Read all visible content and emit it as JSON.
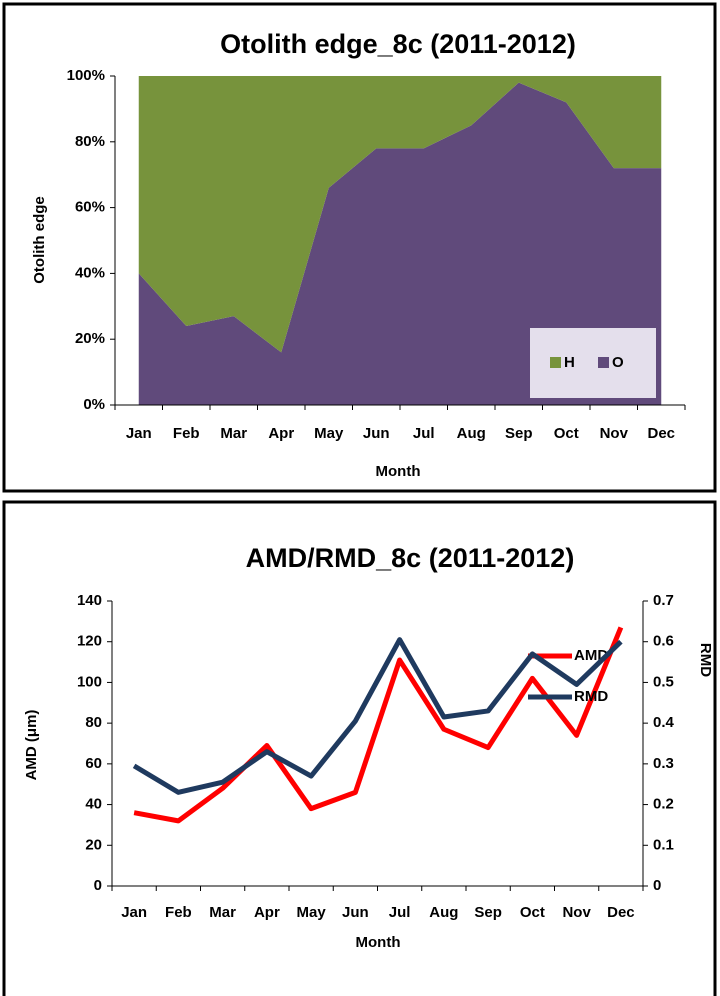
{
  "chart_data": [
    {
      "type": "area",
      "title": "Otolith edge_8c (2011-2012)",
      "x_label": "Month",
      "y_label": "Otolith edge",
      "categories": [
        "Jan",
        "Feb",
        "Mar",
        "Apr",
        "May",
        "Jun",
        "Jul",
        "Aug",
        "Sep",
        "Oct",
        "Nov",
        "Dec"
      ],
      "series": [
        {
          "name": "H",
          "color": "#77933c",
          "values": [
            60,
            76,
            73,
            84,
            34,
            22,
            22,
            15,
            2,
            8,
            28,
            28
          ]
        },
        {
          "name": "O",
          "color": "#604a7b",
          "values": [
            40,
            24,
            27,
            16,
            66,
            78,
            78,
            85,
            98,
            92,
            72,
            72
          ]
        }
      ],
      "ylim": [
        0,
        100
      ],
      "yticks": [
        {
          "value": 0,
          "label": "0%"
        },
        {
          "value": 20,
          "label": "20%"
        },
        {
          "value": 40,
          "label": "40%"
        },
        {
          "value": 60,
          "label": "60%"
        },
        {
          "value": 80,
          "label": "80%"
        },
        {
          "value": 100,
          "label": "100%"
        }
      ]
    },
    {
      "type": "line",
      "title": "AMD/RMD_8c (2011-2012)",
      "x_label": "Month",
      "y_label": "AMD (μm)",
      "y2_label": "RMD",
      "categories": [
        "Jan",
        "Feb",
        "Mar",
        "Apr",
        "May",
        "Jun",
        "Jul",
        "Aug",
        "Sep",
        "Oct",
        "Nov",
        "Dec"
      ],
      "series": [
        {
          "name": "AMD",
          "color": "#ff0000",
          "values": [
            36,
            32,
            48,
            69,
            38,
            46,
            111,
            77,
            68,
            102,
            74,
            127
          ]
        },
        {
          "name": "RMD",
          "color": "#1f3a5f",
          "axis": "y2",
          "values": [
            0.295,
            0.23,
            0.255,
            0.33,
            0.27,
            0.405,
            0.605,
            0.415,
            0.43,
            0.57,
            0.495,
            0.6
          ]
        }
      ],
      "ylim": [
        0,
        140
      ],
      "yticks": [
        0,
        20,
        40,
        60,
        80,
        100,
        120,
        140
      ],
      "y2lim": [
        0,
        0.7
      ],
      "y2ticks": [
        0,
        0.1,
        0.2,
        0.3,
        0.4,
        0.5,
        0.6,
        0.7
      ]
    }
  ]
}
